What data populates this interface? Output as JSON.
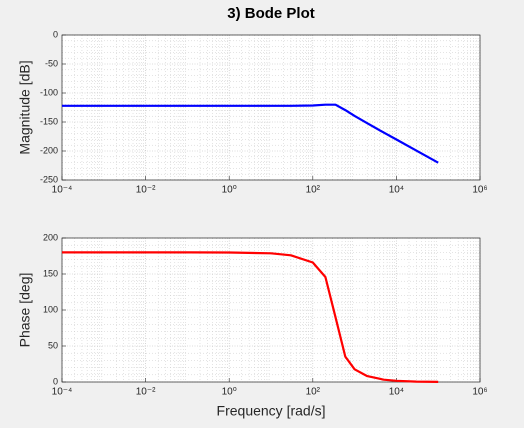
{
  "chart_data": [
    {
      "type": "line",
      "title": "3) Bode Plot",
      "ylabel": "Magnitude [dB]",
      "xscale": "log",
      "grid": true,
      "x": [
        0.0001,
        0.001,
        0.01,
        0.1,
        1,
        10,
        30,
        100,
        200,
        350,
        600,
        1000,
        2000,
        5000,
        10000,
        30000,
        100000
      ],
      "series": [
        {
          "name": "Magnitude",
          "color": "#0000ff",
          "values": [
            -122,
            -122,
            -122,
            -122,
            -122,
            -122,
            -122,
            -121.5,
            -120.2,
            -120.1,
            -129.5,
            -139.5,
            -152.1,
            -168.2,
            -180.2,
            -199.3,
            -220.2
          ]
        }
      ],
      "xlim": [
        0.0001,
        1000000
      ],
      "xticks": [
        {
          "value": 0.0001,
          "label": "10⁻⁴"
        },
        {
          "value": 0.01,
          "label": "10⁻²"
        },
        {
          "value": 1,
          "label": "10⁰"
        },
        {
          "value": 100,
          "label": "10²"
        },
        {
          "value": 10000,
          "label": "10⁴"
        },
        {
          "value": 1000000,
          "label": "10⁶"
        }
      ],
      "ylim": [
        -250,
        0
      ],
      "yticks": [
        -250,
        -200,
        -150,
        -100,
        -50,
        0
      ]
    },
    {
      "type": "line",
      "xlabel": "Frequency [rad/s]",
      "ylabel": "Phase [deg]",
      "xscale": "log",
      "grid": true,
      "x": [
        0.0001,
        0.001,
        0.01,
        0.1,
        1,
        10,
        30,
        100,
        200,
        350,
        600,
        1000,
        2000,
        5000,
        10000,
        30000,
        100000
      ],
      "series": [
        {
          "name": "Phase",
          "color": "#ff0000",
          "values": [
            180,
            180,
            180,
            180,
            179.9,
            178.7,
            176,
            166,
            145.8,
            90,
            35.3,
            17.7,
            8.2,
            3.2,
            1.6,
            0.5,
            0.2
          ]
        }
      ],
      "xlim": [
        0.0001,
        1000000
      ],
      "xticks": [
        {
          "value": 0.0001,
          "label": "10⁻⁴"
        },
        {
          "value": 0.01,
          "label": "10⁻²"
        },
        {
          "value": 1,
          "label": "10⁰"
        },
        {
          "value": 100,
          "label": "10²"
        },
        {
          "value": 10000,
          "label": "10⁴"
        },
        {
          "value": 1000000,
          "label": "10⁶"
        }
      ],
      "ylim": [
        0,
        200
      ],
      "yticks": [
        0,
        50,
        100,
        150,
        200
      ]
    }
  ]
}
